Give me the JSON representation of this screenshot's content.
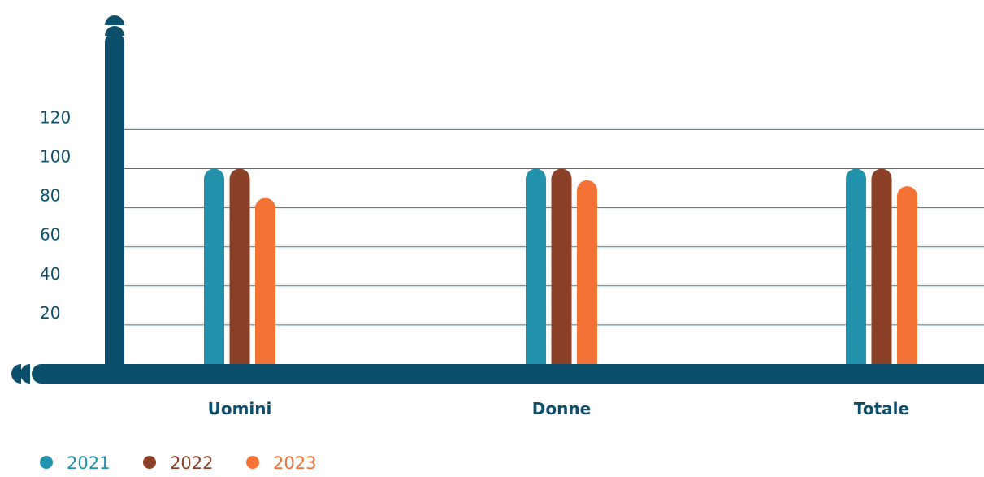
{
  "chart_data": {
    "type": "bar",
    "title": "",
    "xlabel": "",
    "ylabel": "",
    "categories": [
      "Uomini",
      "Donne",
      "Totale"
    ],
    "series": [
      {
        "name": "2021",
        "color": "#2291ab",
        "values": [
          100,
          100,
          100
        ]
      },
      {
        "name": "2022",
        "color": "#8a3f27",
        "values": [
          100,
          100,
          100
        ]
      },
      {
        "name": "2023",
        "color": "#f37234",
        "values": [
          85,
          94,
          91
        ]
      }
    ],
    "yticks": [
      20,
      40,
      60,
      80,
      100,
      120
    ],
    "ylim": [
      0,
      130
    ],
    "grid": true,
    "legend_position": "bottom-left",
    "axis_color": "#0b4f6c",
    "grid_color": "#2a7ba0"
  }
}
